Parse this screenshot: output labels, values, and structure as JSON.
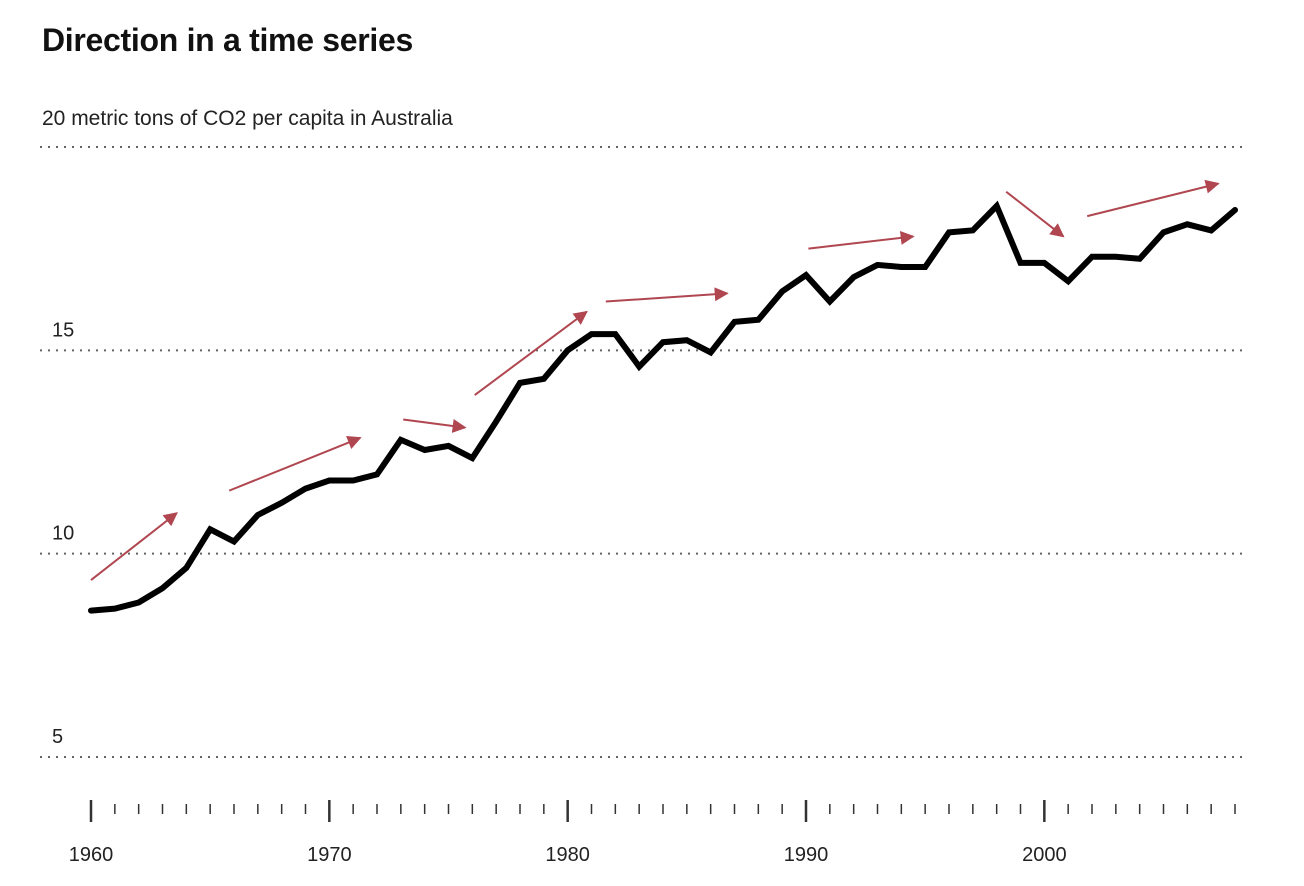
{
  "title": "Direction in a time series",
  "subtitle": "20 metric tons of CO2 per capita in Australia",
  "chart_data": {
    "type": "line",
    "title": "Direction in a time series",
    "ylabel": "metric tons of CO2 per capita in Australia",
    "xlim": [
      1960,
      2008
    ],
    "ylim": [
      5,
      20
    ],
    "yticks": [
      20,
      15,
      10,
      5
    ],
    "ytick_labels": [
      "20",
      "15",
      "10",
      "5"
    ],
    "xticks_labeled": [
      1960,
      1970,
      1980,
      1990,
      2000
    ],
    "grid": true,
    "series": [
      {
        "x": [
          1960,
          1961,
          1962,
          1963,
          1964,
          1965,
          1966,
          1967,
          1968,
          1969,
          1970,
          1971,
          1972,
          1973,
          1974,
          1975,
          1976,
          1977,
          1978,
          1979,
          1980,
          1981,
          1982,
          1983,
          1984,
          1985,
          1986,
          1987,
          1988,
          1989,
          1990,
          1991,
          1992,
          1993,
          1994,
          1995,
          1996,
          1997,
          1998,
          1999,
          2000,
          2001,
          2002,
          2003,
          2004,
          2005,
          2006,
          2007,
          2008
        ],
        "values": [
          8.6,
          8.65,
          8.8,
          9.15,
          9.65,
          10.6,
          10.3,
          10.95,
          11.25,
          11.6,
          11.8,
          11.8,
          11.95,
          12.8,
          12.55,
          12.65,
          12.35,
          13.25,
          14.2,
          14.3,
          15.0,
          15.4,
          15.4,
          14.6,
          15.2,
          15.25,
          14.95,
          15.7,
          15.75,
          16.45,
          16.85,
          16.2,
          16.8,
          17.1,
          17.05,
          17.05,
          17.9,
          17.95,
          18.55,
          17.15,
          17.15,
          16.7,
          17.3,
          17.3,
          17.25,
          17.9,
          18.1,
          17.95,
          18.45
        ],
        "color": "#000000"
      }
    ],
    "annotations": {
      "type": "direction-arrows",
      "color": "#b04750",
      "arrows": [
        {
          "x1": 1960.0,
          "y1": 9.35,
          "x2": 1963.6,
          "y2": 11.0
        },
        {
          "x1": 1965.8,
          "y1": 11.55,
          "x2": 1971.3,
          "y2": 12.85
        },
        {
          "x1": 1973.1,
          "y1": 13.3,
          "x2": 1975.7,
          "y2": 13.1
        },
        {
          "x1": 1976.1,
          "y1": 13.9,
          "x2": 1980.8,
          "y2": 15.95
        },
        {
          "x1": 1981.6,
          "y1": 16.2,
          "x2": 1986.7,
          "y2": 16.4
        },
        {
          "x1": 1990.1,
          "y1": 17.5,
          "x2": 1994.5,
          "y2": 17.8
        },
        {
          "x1": 1998.4,
          "y1": 18.9,
          "x2": 2000.8,
          "y2": 17.8
        },
        {
          "x1": 2001.8,
          "y1": 18.3,
          "x2": 2007.3,
          "y2": 19.1
        }
      ]
    }
  }
}
